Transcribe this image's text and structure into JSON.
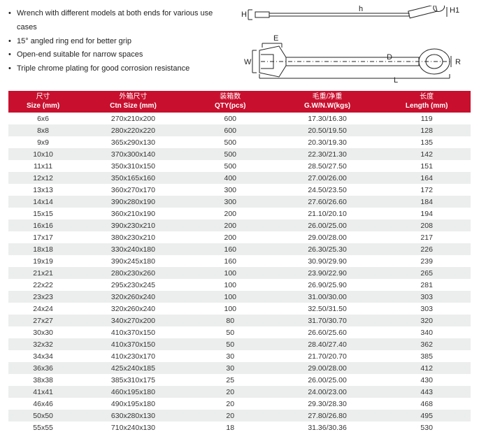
{
  "bullets": [
    "Wrench with different models at both ends for various use cases",
    "15° angled ring end for better grip",
    "Open-end suitable for narrow spaces",
    "Triple chrome plating for good corrosion resistance"
  ],
  "diagram_labels": {
    "H": "H",
    "H1": "H1",
    "h": "h",
    "E": "E",
    "W": "W",
    "D": "D",
    "L": "L",
    "R": "R"
  },
  "table": {
    "header_color": "#c8102e",
    "header_text_color": "#ffffff",
    "row_alt_color": "#eceded",
    "columns": [
      {
        "cn": "尺寸",
        "en": "Size (mm)"
      },
      {
        "cn": "外箱尺寸",
        "en": "Ctn Size (mm)"
      },
      {
        "cn": "装箱数",
        "en": "QTY(pcs)"
      },
      {
        "cn": "毛重/净重",
        "en": "G.W/N.W(kgs)"
      },
      {
        "cn": "长度",
        "en": "Length (mm)"
      }
    ],
    "rows": [
      [
        "6x6",
        "270x210x200",
        "600",
        "17.30/16.30",
        "119"
      ],
      [
        "8x8",
        "280x220x220",
        "600",
        "20.50/19.50",
        "128"
      ],
      [
        "9x9",
        "365x290x130",
        "500",
        "20.30/19.30",
        "135"
      ],
      [
        "10x10",
        "370x300x140",
        "500",
        "22.30/21.30",
        "142"
      ],
      [
        "11x11",
        "350x310x150",
        "500",
        "28.50/27.50",
        "151"
      ],
      [
        "12x12",
        "350x165x160",
        "400",
        "27.00/26.00",
        "164"
      ],
      [
        "13x13",
        "360x270x170",
        "300",
        "24.50/23.50",
        "172"
      ],
      [
        "14x14",
        "390x280x190",
        "300",
        "27.60/26.60",
        "184"
      ],
      [
        "15x15",
        "360x210x190",
        "200",
        "21.10/20.10",
        "194"
      ],
      [
        "16x16",
        "390x230x210",
        "200",
        "26.00/25.00",
        "208"
      ],
      [
        "17x17",
        "380x230x210",
        "200",
        "29.00/28.00",
        "217"
      ],
      [
        "18x18",
        "330x240x180",
        "160",
        "26.30/25.30",
        "226"
      ],
      [
        "19x19",
        "390x245x180",
        "160",
        "30.90/29.90",
        "239"
      ],
      [
        "21x21",
        "280x230x260",
        "100",
        "23.90/22.90",
        "265"
      ],
      [
        "22x22",
        "295x230x245",
        "100",
        "26.90/25.90",
        "281"
      ],
      [
        "23x23",
        "320x260x240",
        "100",
        "31.00/30.00",
        "303"
      ],
      [
        "24x24",
        "320x260x240",
        "100",
        "32.50/31.50",
        "303"
      ],
      [
        "27x27",
        "340x270x200",
        "80",
        "31.70/30.70",
        "320"
      ],
      [
        "30x30",
        "410x370x150",
        "50",
        "26.60/25.60",
        "340"
      ],
      [
        "32x32",
        "410x370x150",
        "50",
        "28.40/27.40",
        "362"
      ],
      [
        "34x34",
        "410x230x170",
        "30",
        "21.70/20.70",
        "385"
      ],
      [
        "36x36",
        "425x240x185",
        "30",
        "29.00/28.00",
        "412"
      ],
      [
        "38x38",
        "385x310x175",
        "25",
        "26.00/25.00",
        "430"
      ],
      [
        "41x41",
        "460x195x180",
        "20",
        "24.00/23.00",
        "443"
      ],
      [
        "46x46",
        "490x195x180",
        "20",
        "29.30/28.30",
        "468"
      ],
      [
        "50x50",
        "630x280x130",
        "20",
        "27.80/26.80",
        "495"
      ],
      [
        "55x55",
        "710x240x130",
        "18",
        "31.36/30.36",
        "530"
      ]
    ]
  }
}
